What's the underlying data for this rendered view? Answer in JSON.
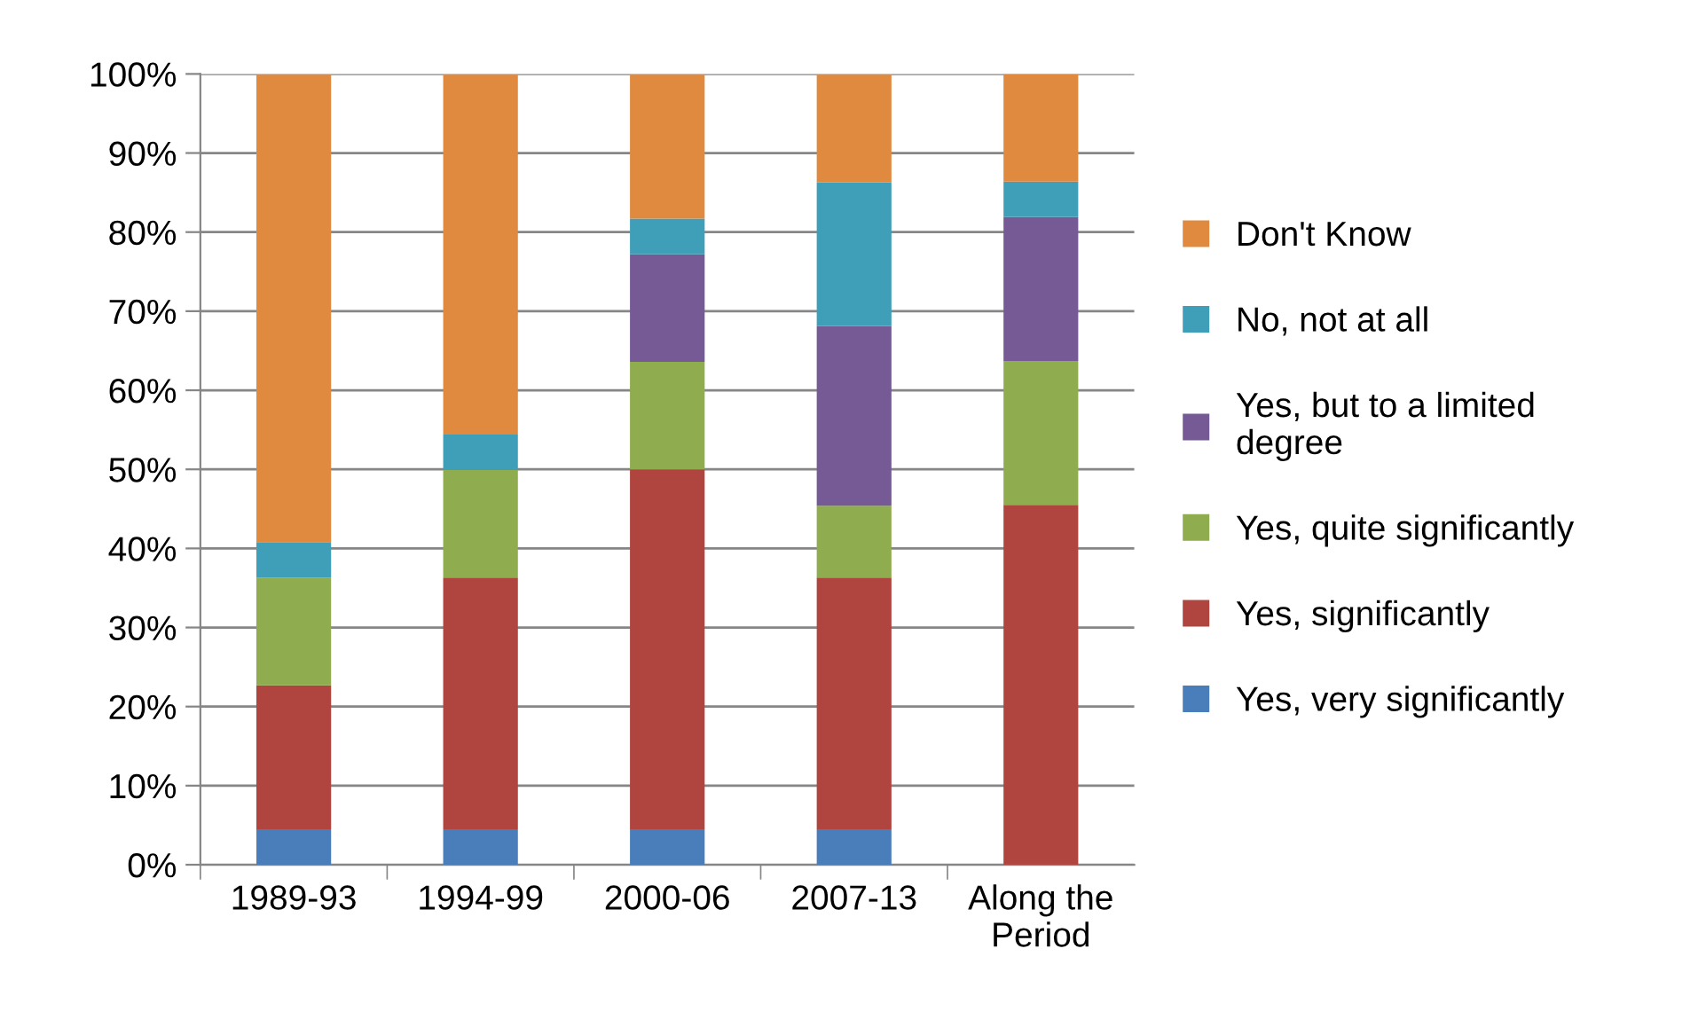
{
  "chart_data": {
    "type": "bar",
    "stacked": true,
    "categories": [
      "1989-93",
      "1994-99",
      "2000-06",
      "2007-13",
      "Along the\nPeriod"
    ],
    "series": [
      {
        "name": "Yes, very significantly",
        "color": "#4a7ebb",
        "values": [
          4.5,
          4.5,
          4.5,
          4.5,
          0
        ]
      },
      {
        "name": "Yes, significantly",
        "color": "#b0443f",
        "values": [
          18.2,
          31.8,
          45.5,
          31.8,
          45.5
        ]
      },
      {
        "name": "Yes, quite significantly",
        "color": "#8fac4f",
        "values": [
          13.6,
          13.6,
          13.6,
          9.1,
          18.2
        ]
      },
      {
        "name": "Yes, but to a limited\ndegree",
        "color": "#755a96",
        "values": [
          0,
          0,
          13.6,
          22.7,
          18.2
        ]
      },
      {
        "name": "No, not at all",
        "color": "#409fb8",
        "values": [
          4.5,
          4.5,
          4.5,
          18.2,
          4.5
        ]
      },
      {
        "name": "Don't Know",
        "color": "#e08a40",
        "values": [
          59.1,
          45.5,
          18.2,
          13.6,
          13.6
        ]
      }
    ],
    "ylim": [
      0,
      100
    ],
    "yticks": [
      {
        "value": 0,
        "label": "0%"
      },
      {
        "value": 10,
        "label": "10%"
      },
      {
        "value": 20,
        "label": "20%"
      },
      {
        "value": 30,
        "label": "30%"
      },
      {
        "value": 40,
        "label": "40%"
      },
      {
        "value": 50,
        "label": "50%"
      },
      {
        "value": 60,
        "label": "60%"
      },
      {
        "value": 70,
        "label": "70%"
      },
      {
        "value": 80,
        "label": "80%"
      },
      {
        "value": 90,
        "label": "90%"
      },
      {
        "value": 100,
        "label": "100%"
      }
    ],
    "grid": "y",
    "legend": "right"
  }
}
